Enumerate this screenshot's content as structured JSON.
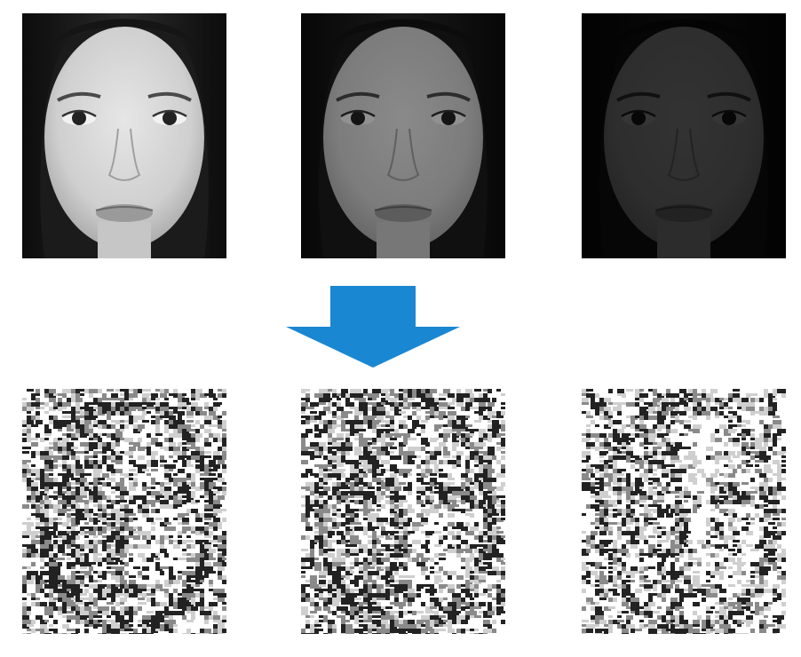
{
  "figure": {
    "input_images": [
      {
        "brightness": 1.0
      },
      {
        "brightness": 0.6
      },
      {
        "brightness": 0.22
      }
    ],
    "output_images": [
      {
        "variant": 1
      },
      {
        "variant": 2
      },
      {
        "variant": 3
      }
    ],
    "arrow_color": "#1a87d2"
  }
}
